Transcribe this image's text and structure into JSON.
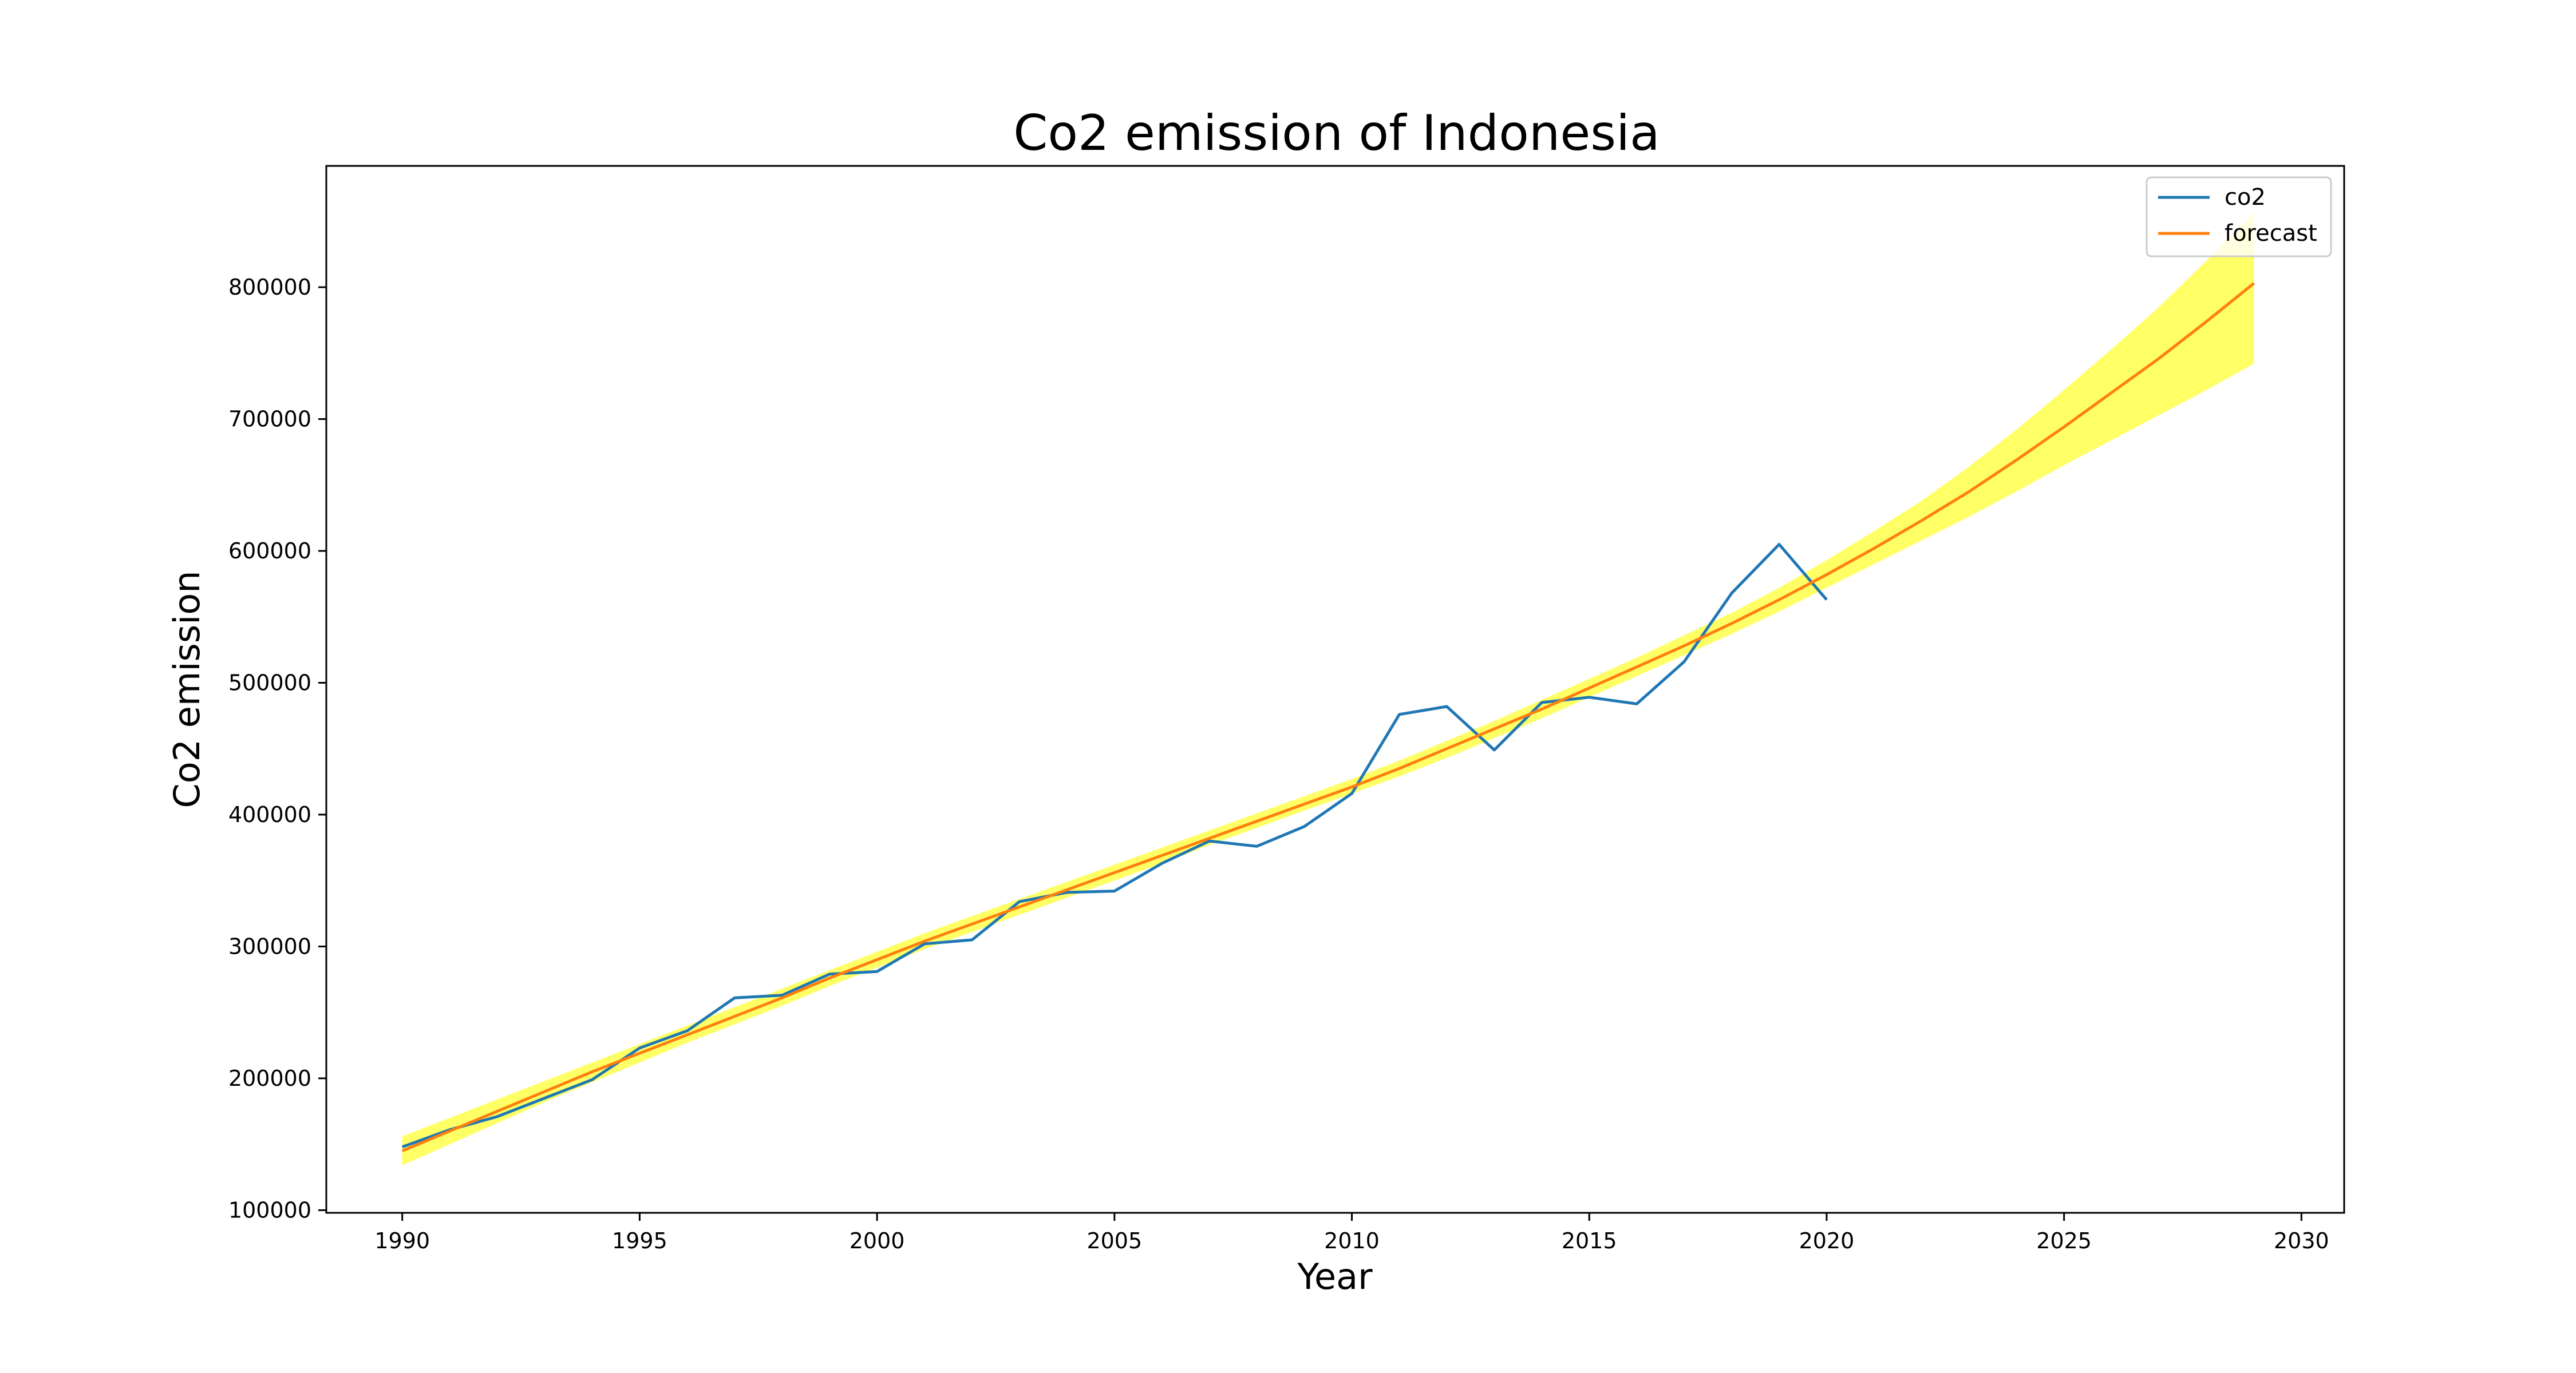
{
  "chart_data": {
    "type": "line",
    "title": "Co2 emission of Indonesia",
    "xlabel": "Year",
    "ylabel": "Co2 emission",
    "xlim": [
      1988.4,
      2030.9
    ],
    "ylim": [
      98000,
      892000
    ],
    "xticks": [
      1990,
      1995,
      2000,
      2005,
      2010,
      2015,
      2020,
      2025,
      2030
    ],
    "yticks": [
      100000,
      200000,
      300000,
      400000,
      500000,
      600000,
      700000,
      800000
    ],
    "grid": false,
    "legend_position": "top-right",
    "colors": {
      "co2": "#1f77b4",
      "forecast": "#ff7f0e",
      "band": "#ffff33"
    },
    "series": [
      {
        "name": "co2",
        "x": [
          1990,
          1991,
          1992,
          1993,
          1994,
          1995,
          1996,
          1997,
          1998,
          1999,
          2000,
          2001,
          2002,
          2003,
          2004,
          2005,
          2006,
          2007,
          2008,
          2009,
          2010,
          2011,
          2012,
          2013,
          2014,
          2015,
          2016,
          2017,
          2018,
          2019,
          2020
        ],
        "values": [
          148000,
          161000,
          171000,
          185000,
          199000,
          223000,
          236000,
          261000,
          263000,
          279000,
          281000,
          302000,
          305000,
          334000,
          341000,
          342000,
          363000,
          380000,
          376000,
          391000,
          416000,
          476000,
          482000,
          449000,
          485000,
          489000,
          484000,
          516000,
          568000,
          605000,
          563000
        ]
      },
      {
        "name": "forecast",
        "x": [
          1990,
          1991,
          1992,
          1993,
          1994,
          1995,
          1996,
          1997,
          1998,
          1999,
          2000,
          2001,
          2002,
          2003,
          2004,
          2005,
          2006,
          2007,
          2008,
          2009,
          2010,
          2011,
          2012,
          2013,
          2014,
          2015,
          2016,
          2017,
          2018,
          2019,
          2020,
          2021,
          2022,
          2023,
          2024,
          2025,
          2026,
          2027,
          2028,
          2029
        ],
        "values": [
          145000,
          160000,
          175000,
          190000,
          205000,
          219000,
          233000,
          247000,
          261000,
          276000,
          290000,
          304000,
          317000,
          330000,
          343000,
          356000,
          369000,
          382000,
          395000,
          408000,
          421000,
          435000,
          450000,
          465000,
          480000,
          496000,
          512000,
          528000,
          545000,
          563000,
          582000,
          602000,
          623000,
          645000,
          669000,
          694000,
          720000,
          746000,
          774000,
          803000
        ],
        "band_lower": [
          134000,
          150000,
          166000,
          182000,
          197000,
          212000,
          227000,
          241000,
          255000,
          270000,
          284000,
          298000,
          311000,
          324000,
          337000,
          350000,
          363000,
          377000,
          390000,
          403000,
          416000,
          429000,
          443000,
          458000,
          473000,
          489000,
          505000,
          521000,
          537000,
          554000,
          572000,
          590000,
          608000,
          626000,
          645000,
          665000,
          684000,
          703000,
          722000,
          742000
        ],
        "band_upper": [
          156000,
          170000,
          184000,
          198000,
          212000,
          226000,
          240000,
          254000,
          268000,
          282000,
          296000,
          310000,
          323000,
          336000,
          349000,
          362000,
          375000,
          388000,
          401000,
          414000,
          427000,
          441000,
          456000,
          471000,
          487000,
          503000,
          519000,
          536000,
          553000,
          572000,
          593000,
          615000,
          638000,
          664000,
          692000,
          722000,
          753000,
          785000,
          820000,
          857000
        ]
      }
    ]
  }
}
